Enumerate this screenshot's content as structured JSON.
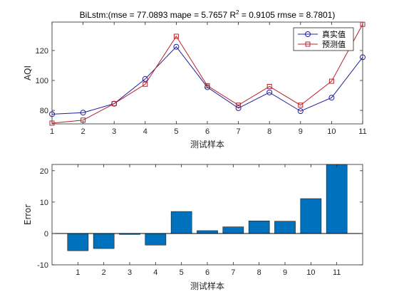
{
  "chart_data": [
    {
      "type": "line",
      "title": {
        "prefix": "BiLstm:(mse = 77.0893 mape = 5.7657  R",
        "superscript": "2",
        "suffix": " = 0.9105 rmse = 8.7801)"
      },
      "xlabel": "测试样本",
      "ylabel": "AQI",
      "x": [
        1,
        2,
        3,
        4,
        5,
        6,
        7,
        8,
        9,
        10,
        11
      ],
      "xlim": [
        1,
        11
      ],
      "ylim": [
        71,
        139
      ],
      "yticks": [
        80,
        100,
        120
      ],
      "grid": false,
      "legend_position": "top-right",
      "series": [
        {
          "name": "真实值",
          "color": "#1f1f9a",
          "marker": "circle",
          "values": [
            77.5,
            78.5,
            84.5,
            101,
            122.5,
            95.5,
            81.5,
            92,
            79.5,
            88.5,
            115.5
          ]
        },
        {
          "name": "预测值",
          "color": "#b8232a",
          "marker": "square",
          "values": [
            71.5,
            73.5,
            84.5,
            97.5,
            129.5,
            96.5,
            83.5,
            96,
            83.5,
            99.5,
            137.5
          ]
        }
      ]
    },
    {
      "type": "bar",
      "xlabel": "测试样本",
      "ylabel": "Error",
      "categories": [
        "1",
        "2",
        "3",
        "4",
        "5",
        "6",
        "7",
        "8",
        "9",
        "10",
        "11"
      ],
      "values": [
        -5.5,
        -4.8,
        -0.3,
        -3.7,
        7.0,
        0.9,
        2.1,
        4.0,
        3.9,
        11.1,
        22.0
      ],
      "ylim": [
        -10,
        22
      ],
      "yticks": [
        -10,
        0,
        10,
        20
      ],
      "bar_color": "#0072bd",
      "grid": false
    }
  ]
}
